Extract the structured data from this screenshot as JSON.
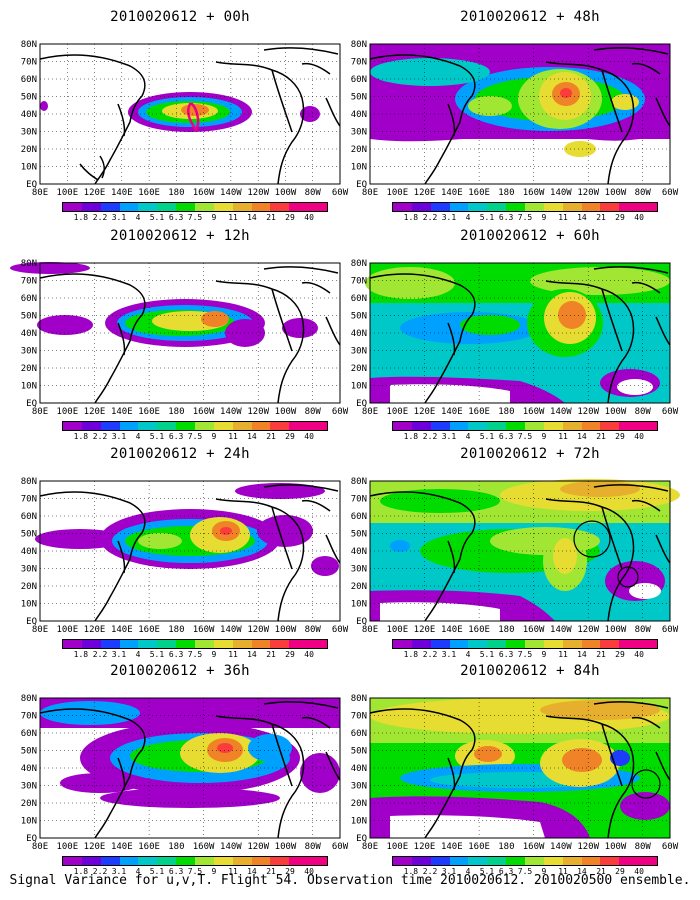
{
  "caption": "Signal Variance for u,v,T. Flight 54. Observation time 2010020612. 2010020500 ensemble.",
  "lat_labels": [
    "80N",
    "70N",
    "60N",
    "50N",
    "40N",
    "30N",
    "20N",
    "10N",
    "EQ"
  ],
  "lon_labels": [
    "80E",
    "100E",
    "120E",
    "140E",
    "160E",
    "180",
    "160W",
    "140W",
    "120W",
    "100W",
    "80W",
    "60W"
  ],
  "colorbar": {
    "levels": [
      "1.8",
      "2.2",
      "3.1",
      "4",
      "5.1",
      "6.3",
      "7.5",
      "9",
      "11",
      "14",
      "21",
      "29",
      "40"
    ],
    "colors": [
      "#a000c8",
      "#6e00dc",
      "#1e3cff",
      "#00a0ff",
      "#00c8c8",
      "#00d28c",
      "#00dc00",
      "#a0e632",
      "#e6dc32",
      "#e6af2d",
      "#f08228",
      "#fa3c3c",
      "#f00082"
    ]
  },
  "panels": [
    {
      "id": "00h",
      "title": "2010020612 + 00h"
    },
    {
      "id": "48h",
      "title": "2010020612 + 48h"
    },
    {
      "id": "12h",
      "title": "2010020612 + 12h"
    },
    {
      "id": "60h",
      "title": "2010020612 + 60h"
    },
    {
      "id": "24h",
      "title": "2010020612 + 24h"
    },
    {
      "id": "72h",
      "title": "2010020612 + 72h"
    },
    {
      "id": "36h",
      "title": "2010020612 + 36h"
    },
    {
      "id": "84h",
      "title": "2010020612 + 84h"
    }
  ]
}
